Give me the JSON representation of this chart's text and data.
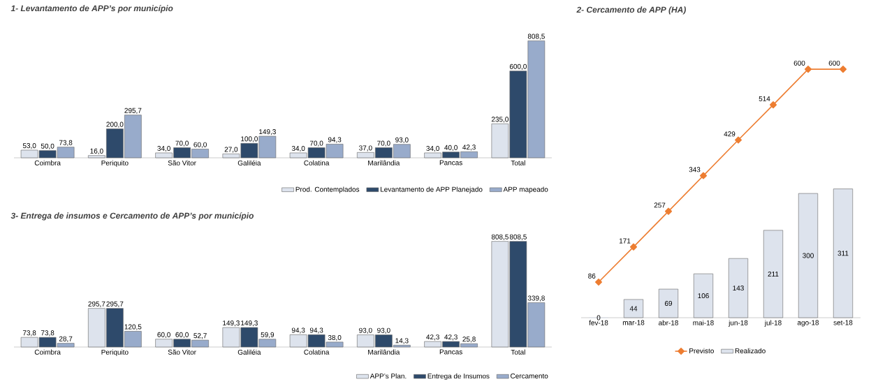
{
  "chart_data": [
    {
      "type": "bar",
      "title": "1- Levantamento de APP’s por município",
      "categories": [
        "Coimbra",
        "Periquito",
        "São Vitor",
        "Galiléia",
        "Colatina",
        "Marilândia",
        "Pancas",
        "Total"
      ],
      "series": [
        {
          "name": "Prod. Contemplados",
          "color": "#dde3ed",
          "values": [
            53.0,
            16.0,
            34.0,
            27.0,
            34.0,
            37.0,
            34.0,
            235.0
          ],
          "value_labels": [
            "53,0",
            "16,0",
            "34,0",
            "27,0",
            "34,0",
            "37,0",
            "34,0",
            "235,0"
          ]
        },
        {
          "name": "Levantamento de APP Planejado",
          "color": "#2e4a6b",
          "values": [
            50.0,
            200.0,
            70.0,
            100.0,
            70.0,
            70.0,
            40.0,
            600.0
          ],
          "value_labels": [
            "50,0",
            "200,0",
            "70,0",
            "100,0",
            "70,0",
            "70,0",
            "40,0",
            "600,0"
          ]
        },
        {
          "name": "APP mapeado",
          "color": "#98abcb",
          "values": [
            73.8,
            295.7,
            60.0,
            149.3,
            94.3,
            93.0,
            42.3,
            808.5
          ],
          "value_labels": [
            "73,8",
            "295,7",
            "60,0",
            "149,3",
            "94,3",
            "93,0",
            "42,3",
            "808,5"
          ]
        }
      ],
      "tick_labels": "x",
      "legend": "bottom right"
    },
    {
      "type": "bar",
      "title": "2- Cercamento de APP (HA)",
      "categories": [
        "fev-18",
        "mar-18",
        "abr-18",
        "mai-18",
        "jun-18",
        "jul-18",
        "ago-18",
        "set-18"
      ],
      "series": [
        {
          "name": "Previsto",
          "type": "line",
          "color": "#ed7d31",
          "marker": "diamond",
          "values": [
            86,
            171,
            257,
            343,
            429,
            514,
            600,
            600
          ]
        },
        {
          "name": "Realizado",
          "type": "bar",
          "color": "#dde3ed",
          "values": [
            0,
            44,
            69,
            106,
            143,
            211,
            300,
            311
          ]
        }
      ],
      "tick_labels": "x",
      "data_labels": true,
      "legend": "bottom"
    },
    {
      "type": "bar",
      "title": "3- Entrega de insumos e Cercamento de APP’s por município",
      "categories": [
        "Coimbra",
        "Periquito",
        "São Vitor",
        "Galiléia",
        "Colatina",
        "Marilândia",
        "Pancas",
        "Total"
      ],
      "series": [
        {
          "name": "APP’s Plan.",
          "color": "#dde3ed",
          "values": [
            73.8,
            295.7,
            60.0,
            149.3,
            94.3,
            93.0,
            42.3,
            808.5
          ],
          "value_labels": [
            "73,8",
            "295,7",
            "60,0",
            "149,3",
            "94,3",
            "93,0",
            "42,3",
            "808,5"
          ]
        },
        {
          "name": "Entrega de Insumos",
          "color": "#2e4a6b",
          "values": [
            73.8,
            295.7,
            60.0,
            149.3,
            94.3,
            93.0,
            42.3,
            808.5
          ],
          "value_labels": [
            "73,8",
            "295,7",
            "60,0",
            "149,3",
            "94,3",
            "93,0",
            "42,3",
            "808,5"
          ]
        },
        {
          "name": "Cercamento",
          "color": "#98abcb",
          "values": [
            28.7,
            120.5,
            52.7,
            59.9,
            38.0,
            14.3,
            25.8,
            339.8
          ],
          "value_labels": [
            "28,7",
            "120,5",
            "52,7",
            "59,9",
            "38,0",
            "14,3",
            "25,8",
            "339,8"
          ]
        }
      ],
      "tick_labels": "x",
      "legend": "bottom right"
    }
  ]
}
